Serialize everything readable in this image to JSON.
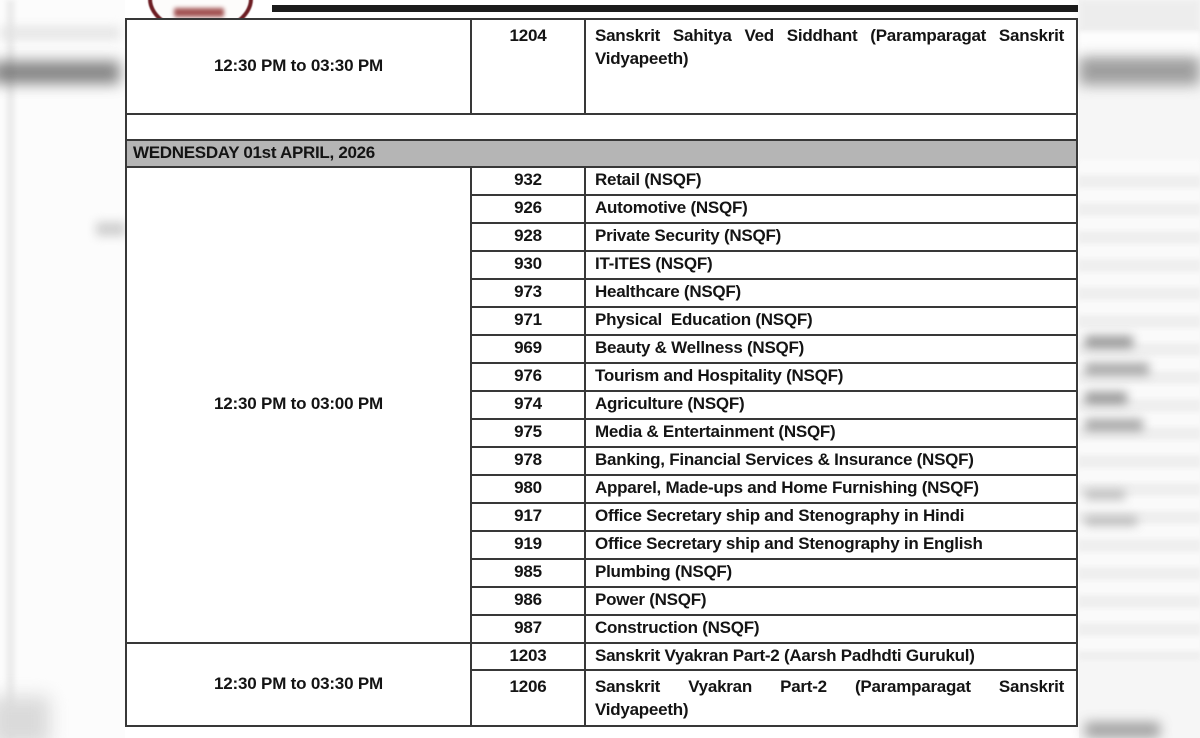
{
  "colors": {
    "band_gray": "#b5b5b5",
    "border_dark": "#383838",
    "rule_black": "#1c1c1c",
    "logo_maroon": "#6d1e24",
    "text_black": "#141414"
  },
  "doc": {
    "day_band": "WEDNESDAY 01st APRIL, 2026",
    "session1": {
      "time": "12:30 PM to 03:30 PM",
      "rows": [
        {
          "code": "1204",
          "subject": "Sanskrit Sahitya Ved Siddhant (Paramparagat Sanskrit Vidyapeeth)"
        }
      ]
    },
    "session2": {
      "time": "12:30 PM to 03:00 PM",
      "rows": [
        {
          "code": "932",
          "subject": "Retail (NSQF)"
        },
        {
          "code": "926",
          "subject": "Automotive (NSQF)"
        },
        {
          "code": "928",
          "subject": "Private Security (NSQF)"
        },
        {
          "code": "930",
          "subject": "IT-ITES (NSQF)"
        },
        {
          "code": "973",
          "subject": "Healthcare (NSQF)"
        },
        {
          "code": "971",
          "subject": "Physical  Education (NSQF)"
        },
        {
          "code": "969",
          "subject": "Beauty & Wellness (NSQF)"
        },
        {
          "code": "976",
          "subject": "Tourism and Hospitality (NSQF)"
        },
        {
          "code": "974",
          "subject": "Agriculture (NSQF)"
        },
        {
          "code": "975",
          "subject": "Media & Entertainment (NSQF)"
        },
        {
          "code": "978",
          "subject": "Banking, Financial Services & Insurance (NSQF)"
        },
        {
          "code": "980",
          "subject": "Apparel, Made-ups and Home Furnishing (NSQF)"
        },
        {
          "code": "917",
          "subject": "Office Secretary ship and Stenography in Hindi"
        },
        {
          "code": "919",
          "subject": "Office Secretary ship and Stenography in English"
        },
        {
          "code": "985",
          "subject": "Plumbing (NSQF)"
        },
        {
          "code": "986",
          "subject": "Power (NSQF)"
        },
        {
          "code": "987",
          "subject": "Construction (NSQF)"
        }
      ]
    },
    "session3": {
      "time": "12:30 PM to 03:30 PM",
      "rows": [
        {
          "code": "1203",
          "subject": "Sanskrit Vyakran Part-2 (Aarsh Padhdti Gurukul)"
        },
        {
          "code": "1206",
          "subject": "Sanskrit Vyakran Part-2 (Paramparagat Sanskrit Vidyapeeth)"
        }
      ]
    }
  }
}
